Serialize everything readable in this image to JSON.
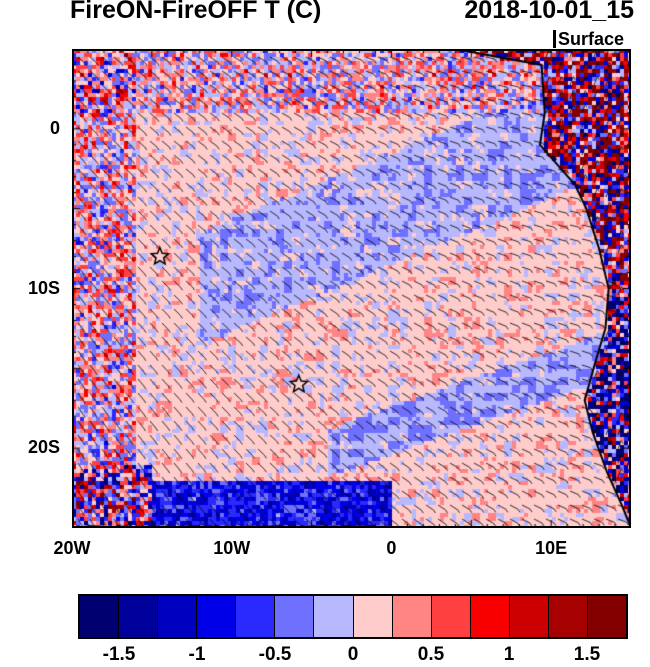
{
  "header": {
    "title": "FireON-FireOFF T (C)",
    "time": "2018-10-01_15",
    "level": "Surface"
  },
  "map": {
    "lon_range": [
      -20,
      15
    ],
    "lat_range": [
      -25,
      5
    ],
    "lon_ticks": [
      {
        "value": -20,
        "label": "20W"
      },
      {
        "value": -10,
        "label": "10W"
      },
      {
        "value": 0,
        "label": "0"
      },
      {
        "value": 10,
        "label": "10E"
      }
    ],
    "lat_ticks": [
      {
        "value": 0,
        "label": "0"
      },
      {
        "value": -10,
        "label": "10S"
      },
      {
        "value": -20,
        "label": "20S"
      }
    ],
    "markers": [
      {
        "type": "star",
        "lon": -14.5,
        "lat": -8
      },
      {
        "type": "star",
        "lon": -5.8,
        "lat": -16
      }
    ]
  },
  "colorbar": {
    "colors": [
      "#000070",
      "#00009a",
      "#0000c0",
      "#0000e8",
      "#2a2aff",
      "#7070ff",
      "#b8b8ff",
      "#ffcccc",
      "#ff8484",
      "#ff4040",
      "#f80000",
      "#cc0000",
      "#a60000",
      "#840000"
    ],
    "labels": [
      {
        "value": -1.5,
        "label": "-1.5"
      },
      {
        "value": -1,
        "label": "-1"
      },
      {
        "value": -0.5,
        "label": "-0.5"
      },
      {
        "value": 0,
        "label": "0"
      },
      {
        "value": 0.5,
        "label": "0.5"
      },
      {
        "value": 1,
        "label": "1"
      },
      {
        "value": 1.5,
        "label": "1.5"
      }
    ],
    "min": -1.75,
    "step": 0.25
  }
}
